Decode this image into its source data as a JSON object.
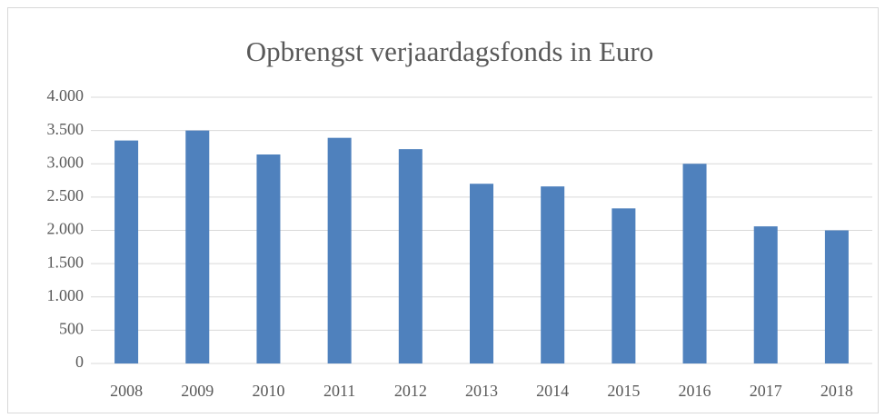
{
  "chart_data": {
    "type": "bar",
    "title": "Opbrengst verjaardagsfonds in Euro",
    "categories": [
      "2008",
      "2009",
      "2010",
      "2011",
      "2012",
      "2013",
      "2014",
      "2015",
      "2016",
      "2017",
      "2018"
    ],
    "values": [
      3350,
      3500,
      3140,
      3390,
      3220,
      2700,
      2660,
      2330,
      3000,
      2060,
      2000
    ],
    "color": "#4f81bd",
    "ylim": [
      0,
      4000
    ],
    "yticks": [
      0,
      500,
      {
        "value": 1000,
        "label": "1.000"
      },
      {
        "value": 1500,
        "label": "1.500"
      },
      {
        "value": 2000,
        "label": "2.000"
      },
      {
        "value": 2500,
        "label": "2.500"
      },
      {
        "value": 3000,
        "label": "3.000"
      },
      {
        "value": 3500,
        "label": "3.500"
      },
      {
        "value": 4000,
        "label": "4.000"
      }
    ],
    "grid": true
  }
}
